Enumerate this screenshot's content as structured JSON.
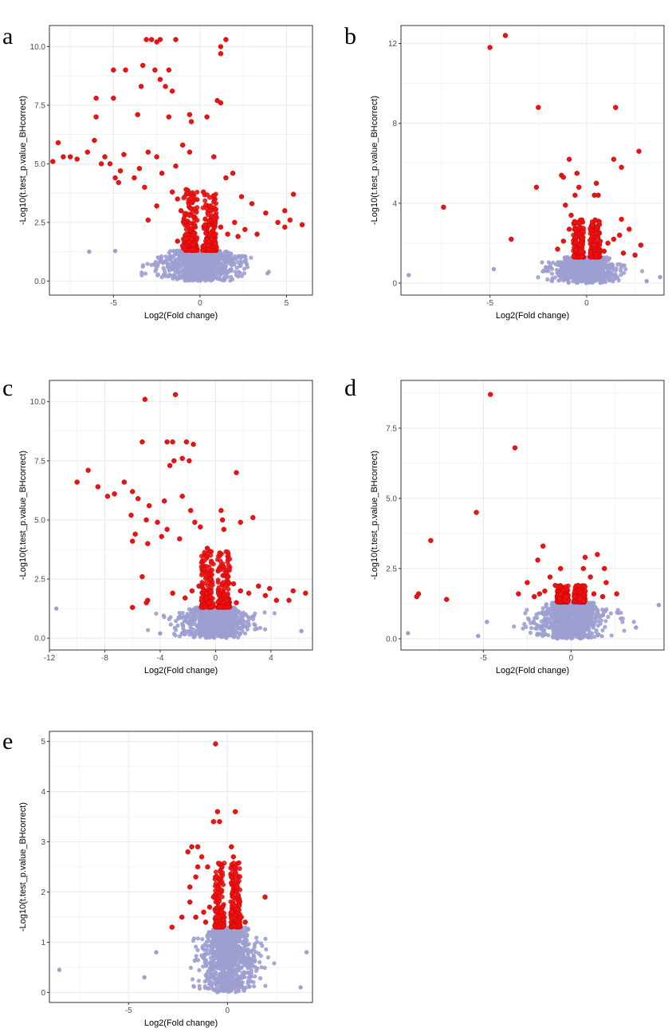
{
  "colors": {
    "significant": "#ee1111",
    "nonsignificant": "#9d9fd0",
    "grid": "#ebebeb",
    "panel_border": "#333333"
  },
  "chart_data": [
    {
      "type": "scatter",
      "panel_label": "a",
      "xlabel": "Log2(Fold change)",
      "ylabel": "-Log10(t.test_p.value_BHcorrect)",
      "xlim": [
        -8.7,
        6.5
      ],
      "ylim": [
        -0.6,
        10.9
      ],
      "xticks": [
        -5,
        0,
        5
      ],
      "yticks": [
        0.0,
        2.5,
        5.0,
        7.5,
        10.0
      ],
      "ytick_labels": [
        "0.0",
        "2.5",
        "5.0",
        "7.5",
        "10.0"
      ],
      "significant_threshold": 1.3,
      "points": [
        [
          -3.1,
          10.3
        ],
        [
          -2.8,
          10.3
        ],
        [
          -2.5,
          10.2
        ],
        [
          -2.3,
          10.3
        ],
        [
          -1.4,
          10.3
        ],
        [
          1.5,
          10.3
        ],
        [
          1.2,
          10.0
        ],
        [
          1.2,
          9.7
        ],
        [
          -4.3,
          9.0
        ],
        [
          -5.0,
          9.0
        ],
        [
          -3.3,
          9.2
        ],
        [
          -2.6,
          9.0
        ],
        [
          -1.8,
          9.0
        ],
        [
          -2.3,
          8.6
        ],
        [
          -3.4,
          8.3
        ],
        [
          -2.0,
          8.3
        ],
        [
          -1.6,
          8.1
        ],
        [
          -6.0,
          7.8
        ],
        [
          -5.0,
          7.8
        ],
        [
          1.0,
          7.7
        ],
        [
          1.2,
          7.6
        ],
        [
          -6.0,
          7.0
        ],
        [
          -3.6,
          7.1
        ],
        [
          -1.8,
          7.0
        ],
        [
          -0.6,
          7.1
        ],
        [
          0.4,
          7.0
        ],
        [
          -0.5,
          6.8
        ],
        [
          -8.2,
          5.9
        ],
        [
          -6.1,
          6.0
        ],
        [
          -7.5,
          5.3
        ],
        [
          -7.9,
          5.3
        ],
        [
          -7.1,
          5.2
        ],
        [
          -8.5,
          5.1
        ],
        [
          -6.5,
          5.5
        ],
        [
          -5.5,
          5.3
        ],
        [
          -4.4,
          5.4
        ],
        [
          -3.0,
          5.5
        ],
        [
          -2.5,
          5.3
        ],
        [
          -1.0,
          5.8
        ],
        [
          -0.6,
          5.5
        ],
        [
          0.8,
          5.3
        ],
        [
          -5.2,
          5.0
        ],
        [
          -4.6,
          4.7
        ],
        [
          -3.5,
          4.8
        ],
        [
          -1.4,
          4.9
        ],
        [
          -5.7,
          5.0
        ],
        [
          -4.9,
          4.4
        ],
        [
          -3.8,
          4.4
        ],
        [
          -2.2,
          4.6
        ],
        [
          1.9,
          4.6
        ],
        [
          1.5,
          4.4
        ],
        [
          -4.7,
          4.2
        ],
        [
          -3.2,
          4.0
        ],
        [
          5.4,
          3.7
        ],
        [
          4.9,
          3.0
        ],
        [
          5.2,
          2.6
        ],
        [
          5.9,
          2.4
        ],
        [
          4.9,
          2.3
        ],
        [
          3.8,
          2.9
        ],
        [
          4.5,
          2.5
        ],
        [
          2.4,
          3.6
        ],
        [
          3.0,
          3.3
        ],
        [
          -1.6,
          3.8
        ],
        [
          -1.3,
          3.5
        ],
        [
          -1.1,
          3.0
        ],
        [
          -0.8,
          3.9
        ],
        [
          -0.4,
          3.6
        ],
        [
          -0.6,
          2.8
        ],
        [
          -0.9,
          2.5
        ],
        [
          0.2,
          3.8
        ],
        [
          0.6,
          3.2
        ],
        [
          0.9,
          2.8
        ],
        [
          0.3,
          2.4
        ],
        [
          1.2,
          2.3
        ],
        [
          1.6,
          2.0
        ],
        [
          2.0,
          2.5
        ],
        [
          2.6,
          2.2
        ],
        [
          3.3,
          2.0
        ],
        [
          2.2,
          1.9
        ],
        [
          -2.5,
          3.2
        ],
        [
          -3.0,
          2.6
        ],
        [
          -0.8,
          2.0
        ],
        [
          -0.5,
          1.8
        ],
        [
          -1.3,
          1.7
        ],
        [
          -1.0,
          1.5
        ],
        [
          0.5,
          1.7
        ],
        [
          0.2,
          1.5
        ],
        [
          0.9,
          1.6
        ],
        [
          -6.4,
          1.25
        ],
        [
          -4.9,
          1.28
        ]
      ]
    },
    {
      "type": "scatter",
      "panel_label": "b",
      "xlabel": "Log2(Fold change)",
      "ylabel": "-Log10(t.test_p.value_BHcorrect)",
      "xlim": [
        -9.6,
        4.0
      ],
      "ylim": [
        -0.6,
        12.9
      ],
      "xticks": [
        -5,
        0
      ],
      "yticks": [
        0,
        4,
        8,
        12
      ],
      "ytick_labels": [
        "0",
        "4",
        "8",
        "12"
      ],
      "significant_threshold": 1.3,
      "points": [
        [
          -4.2,
          12.4
        ],
        [
          -5.0,
          11.8
        ],
        [
          -2.5,
          8.8
        ],
        [
          1.5,
          8.8
        ],
        [
          2.7,
          6.6
        ],
        [
          1.4,
          6.2
        ],
        [
          1.8,
          5.8
        ],
        [
          -7.4,
          3.8
        ],
        [
          -3.9,
          2.2
        ],
        [
          -0.9,
          6.2
        ],
        [
          -0.5,
          5.5
        ],
        [
          -1.3,
          5.4
        ],
        [
          -1.2,
          5.3
        ],
        [
          -2.6,
          4.8
        ],
        [
          -0.6,
          4.4
        ],
        [
          0.5,
          5.0
        ],
        [
          0.4,
          4.4
        ],
        [
          -0.4,
          4.8
        ],
        [
          0.6,
          4.4
        ],
        [
          -1.1,
          3.9
        ],
        [
          -0.8,
          3.4
        ],
        [
          -0.4,
          3.0
        ],
        [
          -0.9,
          2.7
        ],
        [
          -0.6,
          2.3
        ],
        [
          -1.2,
          2.1
        ],
        [
          0.3,
          2.9
        ],
        [
          0.5,
          2.5
        ],
        [
          0.7,
          2.1
        ],
        [
          0.4,
          1.9
        ],
        [
          1.1,
          2.0
        ],
        [
          1.4,
          2.2
        ],
        [
          1.8,
          3.2
        ],
        [
          2.2,
          2.7
        ],
        [
          1.7,
          2.4
        ],
        [
          2.8,
          1.9
        ],
        [
          -1.5,
          1.7
        ],
        [
          -0.3,
          1.6
        ],
        [
          0.9,
          1.6
        ],
        [
          1.9,
          1.5
        ],
        [
          2.5,
          1.4
        ],
        [
          -9.2,
          0.4
        ],
        [
          -4.8,
          0.7
        ],
        [
          3.8,
          0.3
        ],
        [
          3.1,
          0.1
        ]
      ]
    },
    {
      "type": "scatter",
      "panel_label": "c",
      "xlabel": "Log2(Fold change)",
      "ylabel": "-Log10(t.test_p.value_BHcorrect)",
      "xlim": [
        -12.0,
        7.0
      ],
      "ylim": [
        -0.5,
        10.9
      ],
      "xticks": [
        -12,
        -8,
        -4,
        0,
        4
      ],
      "yticks": [
        0.0,
        2.5,
        5.0,
        7.5,
        10.0
      ],
      "ytick_labels": [
        "0.0",
        "2.5",
        "5.0",
        "7.5",
        "10.0"
      ],
      "significant_threshold": 1.3,
      "points": [
        [
          -5.1,
          10.1
        ],
        [
          -2.9,
          10.3
        ],
        [
          -3.5,
          8.3
        ],
        [
          -3.1,
          8.3
        ],
        [
          -2.1,
          8.3
        ],
        [
          -1.6,
          8.2
        ],
        [
          -5.3,
          8.3
        ],
        [
          -3.0,
          7.5
        ],
        [
          -2.4,
          7.6
        ],
        [
          -1.9,
          7.5
        ],
        [
          -3.3,
          7.3
        ],
        [
          1.5,
          7.0
        ],
        [
          -10.0,
          6.6
        ],
        [
          -9.2,
          7.1
        ],
        [
          -8.5,
          6.4
        ],
        [
          -7.8,
          6.0
        ],
        [
          -7.3,
          6.1
        ],
        [
          -6.6,
          6.6
        ],
        [
          -6.0,
          6.2
        ],
        [
          -5.6,
          5.9
        ],
        [
          -4.8,
          5.6
        ],
        [
          -3.7,
          5.8
        ],
        [
          -2.4,
          6.0
        ],
        [
          -1.8,
          5.4
        ],
        [
          -6.1,
          5.2
        ],
        [
          -5.0,
          5.0
        ],
        [
          -4.2,
          4.9
        ],
        [
          -3.5,
          4.6
        ],
        [
          -2.6,
          4.2
        ],
        [
          -1.5,
          4.9
        ],
        [
          -5.8,
          4.4
        ],
        [
          -4.9,
          4.0
        ],
        [
          -3.9,
          4.3
        ],
        [
          -6.0,
          4.1
        ],
        [
          -1.1,
          4.7
        ],
        [
          2.7,
          5.1
        ],
        [
          0.4,
          5.4
        ],
        [
          0.5,
          5.0
        ],
        [
          0.6,
          4.6
        ],
        [
          1.8,
          4.9
        ],
        [
          -5.3,
          2.6
        ],
        [
          -4.9,
          1.6
        ],
        [
          -6.0,
          1.3
        ],
        [
          -5.0,
          1.5
        ],
        [
          -0.6,
          3.8
        ],
        [
          -0.3,
          3.2
        ],
        [
          -0.8,
          2.9
        ],
        [
          -0.4,
          2.5
        ],
        [
          -1.2,
          2.2
        ],
        [
          -1.7,
          2.0
        ],
        [
          0.3,
          3.6
        ],
        [
          0.6,
          3.0
        ],
        [
          0.9,
          2.6
        ],
        [
          1.3,
          2.3
        ],
        [
          1.8,
          2.0
        ],
        [
          2.4,
          1.9
        ],
        [
          3.1,
          2.2
        ],
        [
          3.6,
          1.8
        ],
        [
          4.4,
          1.6
        ],
        [
          5.6,
          2.0
        ],
        [
          6.5,
          1.9
        ],
        [
          5.3,
          1.6
        ],
        [
          3.9,
          2.1
        ],
        [
          -2.2,
          1.7
        ],
        [
          -3.1,
          1.9
        ],
        [
          -1.0,
          1.6
        ],
        [
          -0.5,
          1.5
        ],
        [
          0.8,
          1.6
        ],
        [
          1.5,
          1.5
        ],
        [
          -11.5,
          1.25
        ],
        [
          -4.0,
          0.2
        ],
        [
          6.2,
          0.3
        ]
      ]
    },
    {
      "type": "scatter",
      "panel_label": "d",
      "xlabel": "Log2(Fold change)",
      "ylabel": "-Log10(t.test_p.value_BHcorrect)",
      "xlim": [
        -9.7,
        5.3
      ],
      "ylim": [
        -0.4,
        9.2
      ],
      "xticks": [
        -5,
        0
      ],
      "yticks": [
        0.0,
        2.5,
        5.0,
        7.5
      ],
      "ytick_labels": [
        "0.0",
        "2.5",
        "5.0",
        "7.5"
      ],
      "significant_threshold": 1.3,
      "points": [
        [
          -4.6,
          8.7
        ],
        [
          -3.2,
          6.8
        ],
        [
          -5.4,
          4.5
        ],
        [
          -8.0,
          3.5
        ],
        [
          -8.7,
          1.6
        ],
        [
          -8.8,
          1.5
        ],
        [
          -7.1,
          1.4
        ],
        [
          -1.6,
          3.3
        ],
        [
          -1.9,
          2.8
        ],
        [
          -0.6,
          2.5
        ],
        [
          0.7,
          2.5
        ],
        [
          1.1,
          2.2
        ],
        [
          0.8,
          2.9
        ],
        [
          1.5,
          3.0
        ],
        [
          1.9,
          2.5
        ],
        [
          2.0,
          2.0
        ],
        [
          -1.2,
          2.2
        ],
        [
          -2.5,
          2.0
        ],
        [
          -0.9,
          1.9
        ],
        [
          -1.5,
          1.7
        ],
        [
          -1.8,
          1.6
        ],
        [
          -0.6,
          1.6
        ],
        [
          -0.3,
          1.5
        ],
        [
          -2.1,
          1.5
        ],
        [
          -3.0,
          1.6
        ],
        [
          0.4,
          1.9
        ],
        [
          0.8,
          1.7
        ],
        [
          1.3,
          1.6
        ],
        [
          1.8,
          1.5
        ],
        [
          2.6,
          1.6
        ],
        [
          0.2,
          1.5
        ],
        [
          0.5,
          1.4
        ],
        [
          -9.3,
          0.2
        ],
        [
          -4.8,
          0.6
        ],
        [
          -5.3,
          0.1
        ],
        [
          5.0,
          1.2
        ],
        [
          3.7,
          0.4
        ]
      ]
    },
    {
      "type": "scatter",
      "panel_label": "e",
      "xlabel": "Log2(Fold change)",
      "ylabel": "-Log10(t.test_p.value_BHcorrect)",
      "xlim": [
        -9.0,
        4.3
      ],
      "ylim": [
        -0.2,
        5.2
      ],
      "xticks": [
        -5,
        0
      ],
      "yticks": [
        0,
        1,
        2,
        3,
        4,
        5
      ],
      "ytick_labels": [
        "0",
        "1",
        "2",
        "3",
        "4",
        "5"
      ],
      "significant_threshold": 1.3,
      "points": [
        [
          -0.6,
          4.95
        ],
        [
          -0.5,
          3.6
        ],
        [
          -0.7,
          3.4
        ],
        [
          -0.4,
          3.4
        ],
        [
          0.4,
          3.6
        ],
        [
          0.2,
          2.9
        ],
        [
          -1.8,
          2.9
        ],
        [
          -1.5,
          2.9
        ],
        [
          -2.0,
          2.8
        ],
        [
          -1.3,
          2.7
        ],
        [
          -1.0,
          2.5
        ],
        [
          -1.5,
          2.5
        ],
        [
          -1.9,
          2.1
        ],
        [
          -1.6,
          2.3
        ],
        [
          -0.6,
          2.3
        ],
        [
          0.3,
          2.7
        ],
        [
          0.4,
          2.5
        ],
        [
          0.2,
          2.3
        ],
        [
          0.5,
          2.1
        ],
        [
          0.3,
          1.9
        ],
        [
          0.6,
          1.8
        ],
        [
          0.7,
          1.5
        ],
        [
          0.9,
          1.4
        ],
        [
          0.2,
          1.6
        ],
        [
          -0.7,
          1.9
        ],
        [
          -0.9,
          1.7
        ],
        [
          -1.2,
          1.6
        ],
        [
          -0.5,
          1.5
        ],
        [
          -1.6,
          1.5
        ],
        [
          -1.1,
          1.4
        ],
        [
          -0.3,
          1.6
        ],
        [
          1.9,
          1.9
        ],
        [
          -2.3,
          1.5
        ],
        [
          -2.8,
          1.3
        ],
        [
          -1.9,
          1.8
        ],
        [
          -8.5,
          0.45
        ],
        [
          -3.6,
          0.8
        ],
        [
          -4.2,
          0.3
        ],
        [
          4.0,
          0.8
        ],
        [
          3.7,
          0.1
        ]
      ]
    }
  ]
}
